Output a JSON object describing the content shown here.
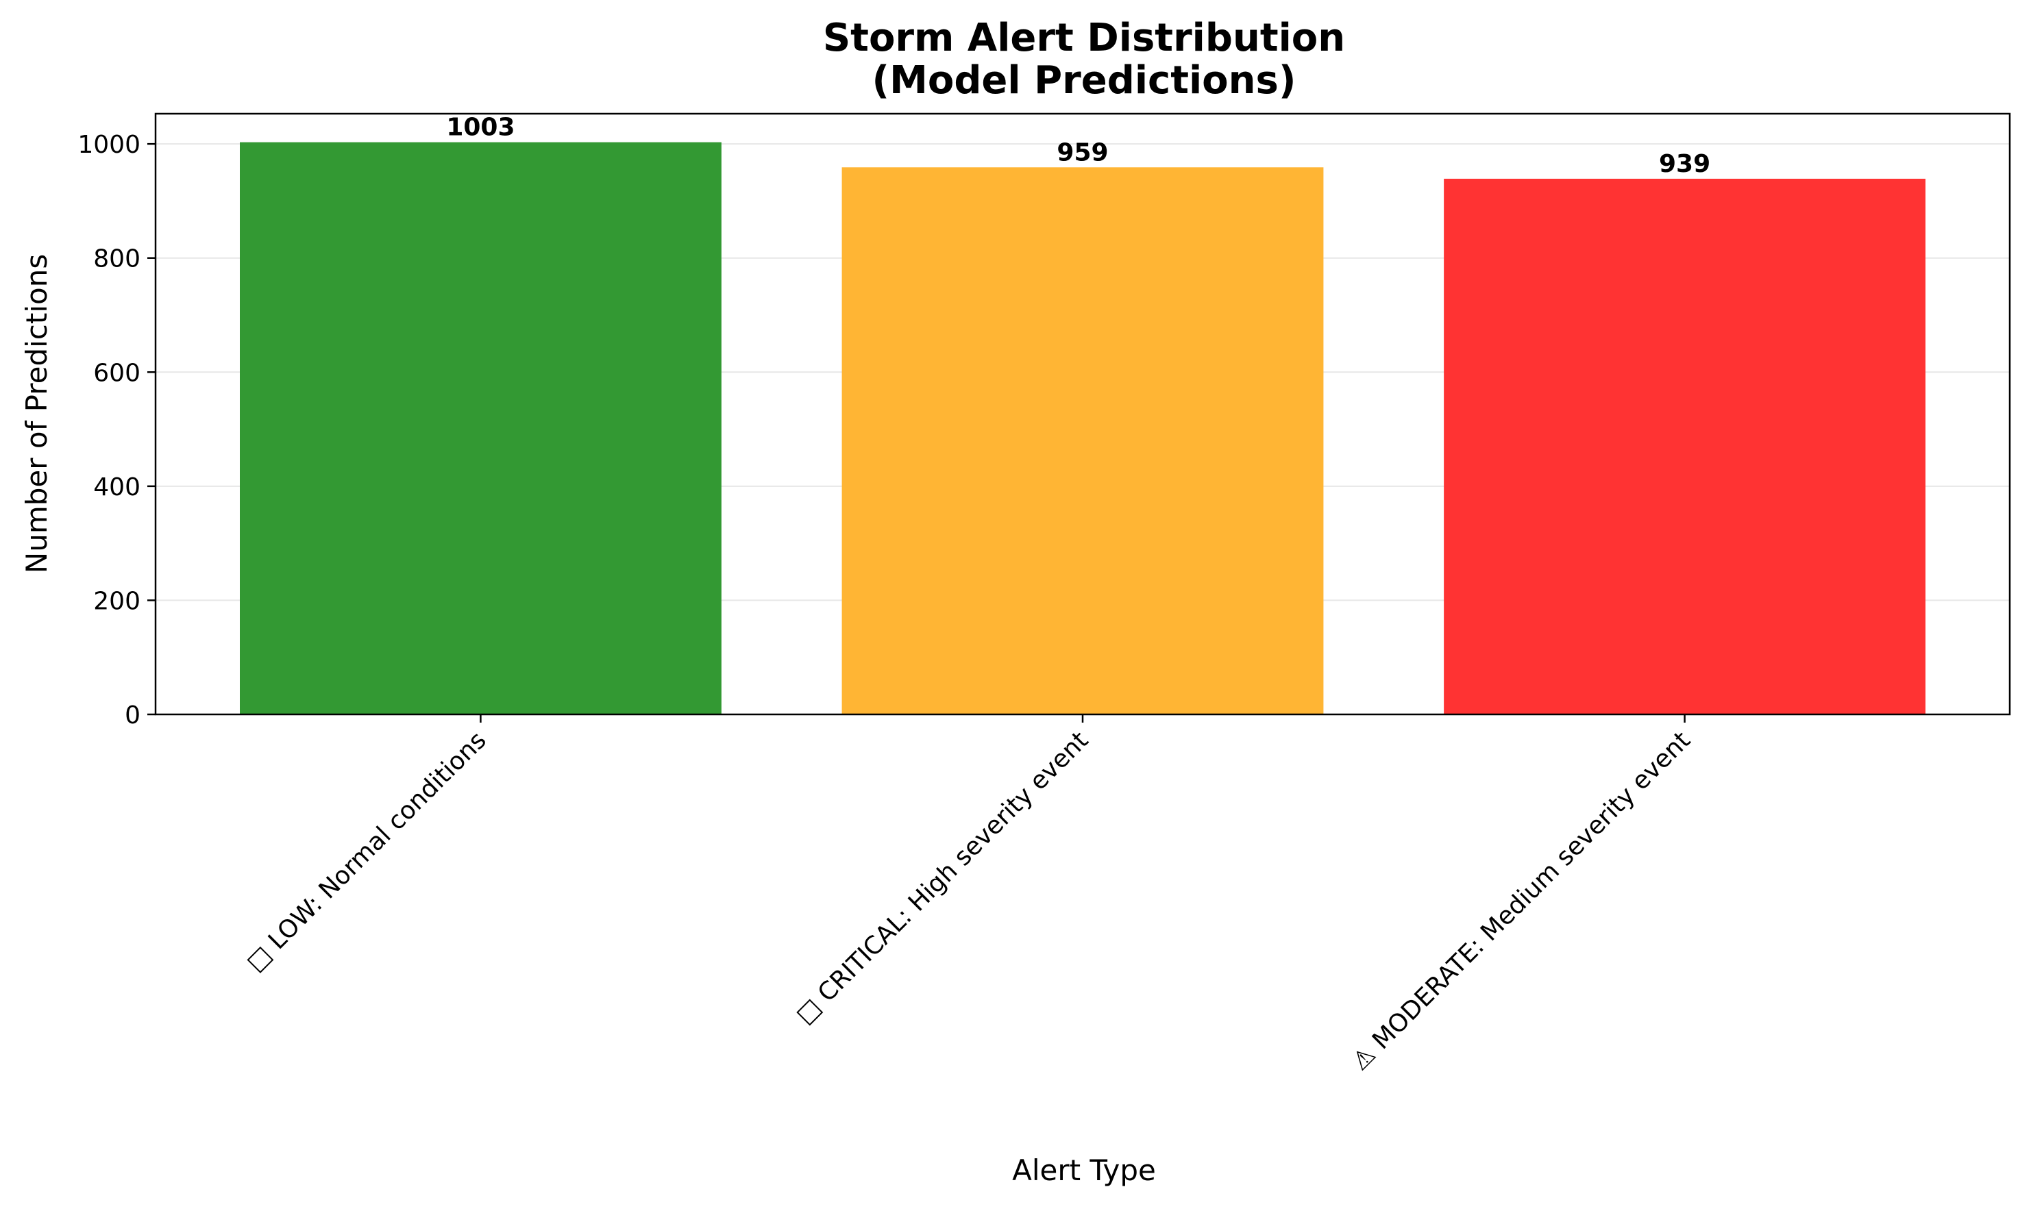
{
  "chart_data": {
    "type": "bar",
    "title": "Storm Alert Distribution\n(Model Predictions)",
    "title_lines": [
      "Storm Alert Distribution",
      "(Model Predictions)"
    ],
    "xlabel": "Alert Type",
    "ylabel": "Number of Predictions",
    "categories": [
      "□ LOW: Normal conditions",
      "□ CRITICAL: High severity event",
      "⚠ MODERATE: Medium severity event"
    ],
    "values": [
      1003,
      959,
      939
    ],
    "data_labels": [
      "1003",
      "959",
      "939"
    ],
    "colors": [
      "#339933",
      "#ffb534",
      "#ff3333"
    ],
    "ylim": [
      0,
      1053
    ],
    "yticks": [
      0,
      200,
      400,
      600,
      800,
      1000
    ],
    "grid": "y",
    "legend": "none"
  }
}
